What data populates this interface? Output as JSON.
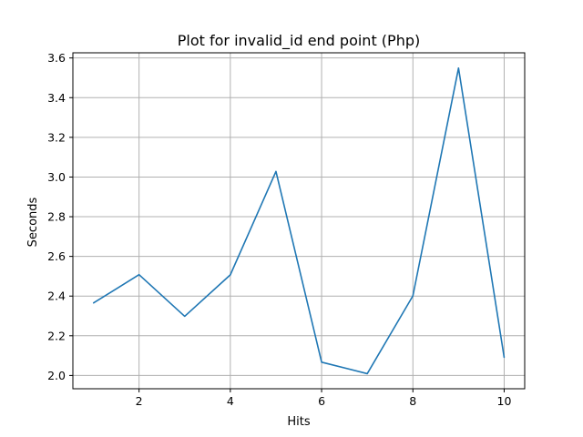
{
  "chart_data": {
    "type": "line",
    "title": "Plot for invalid_id end point (Php)",
    "xlabel": "Hits",
    "ylabel": "Seconds",
    "x": [
      1,
      2,
      3,
      4,
      5,
      6,
      7,
      8,
      9,
      10
    ],
    "series": [
      {
        "values": [
          2.365,
          2.508,
          2.298,
          2.507,
          3.028,
          2.067,
          2.009,
          2.401,
          3.549,
          2.091
        ]
      }
    ],
    "xlim": [
      0.55,
      10.45
    ],
    "ylim": [
      1.933,
      3.626
    ],
    "xticks": [
      2,
      4,
      6,
      8,
      10
    ],
    "xtick_labels": [
      "2",
      "4",
      "6",
      "8",
      "10"
    ],
    "yticks": [
      2.0,
      2.2,
      2.4,
      2.6,
      2.8,
      3.0,
      3.2,
      3.4,
      3.6
    ],
    "ytick_labels": [
      "2.0",
      "2.2",
      "2.4",
      "2.6",
      "2.8",
      "3.0",
      "3.2",
      "3.4",
      "3.6"
    ],
    "grid": true,
    "line_color": "#1f77b4"
  }
}
